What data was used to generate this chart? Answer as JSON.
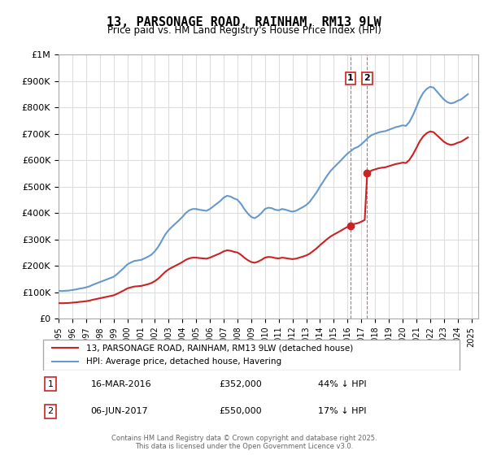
{
  "title": "13, PARSONAGE ROAD, RAINHAM, RM13 9LW",
  "subtitle": "Price paid vs. HM Land Registry's House Price Index (HPI)",
  "xlabel": "",
  "ylabel": "",
  "ylim": [
    0,
    1000000
  ],
  "yticks": [
    0,
    100000,
    200000,
    300000,
    400000,
    500000,
    600000,
    700000,
    800000,
    900000,
    1000000
  ],
  "ytick_labels": [
    "£0",
    "£100K",
    "£200K",
    "£300K",
    "£400K",
    "£500K",
    "£600K",
    "£700K",
    "£800K",
    "£900K",
    "£1M"
  ],
  "hpi_years": [
    1995.0,
    1995.25,
    1995.5,
    1995.75,
    1996.0,
    1996.25,
    1996.5,
    1996.75,
    1997.0,
    1997.25,
    1997.5,
    1997.75,
    1998.0,
    1998.25,
    1998.5,
    1998.75,
    1999.0,
    1999.25,
    1999.5,
    1999.75,
    2000.0,
    2000.25,
    2000.5,
    2000.75,
    2001.0,
    2001.25,
    2001.5,
    2001.75,
    2002.0,
    2002.25,
    2002.5,
    2002.75,
    2003.0,
    2003.25,
    2003.5,
    2003.75,
    2004.0,
    2004.25,
    2004.5,
    2004.75,
    2005.0,
    2005.25,
    2005.5,
    2005.75,
    2006.0,
    2006.25,
    2006.5,
    2006.75,
    2007.0,
    2007.25,
    2007.5,
    2007.75,
    2008.0,
    2008.25,
    2008.5,
    2008.75,
    2009.0,
    2009.25,
    2009.5,
    2009.75,
    2010.0,
    2010.25,
    2010.5,
    2010.75,
    2011.0,
    2011.25,
    2011.5,
    2011.75,
    2012.0,
    2012.25,
    2012.5,
    2012.75,
    2013.0,
    2013.25,
    2013.5,
    2013.75,
    2014.0,
    2014.25,
    2014.5,
    2014.75,
    2015.0,
    2015.25,
    2015.5,
    2015.75,
    2016.0,
    2016.25,
    2016.5,
    2016.75,
    2017.0,
    2017.25,
    2017.5,
    2017.75,
    2018.0,
    2018.25,
    2018.5,
    2018.75,
    2019.0,
    2019.25,
    2019.5,
    2019.75,
    2020.0,
    2020.25,
    2020.5,
    2020.75,
    2021.0,
    2021.25,
    2021.5,
    2021.75,
    2022.0,
    2022.25,
    2022.5,
    2022.75,
    2023.0,
    2023.25,
    2023.5,
    2023.75,
    2024.0,
    2024.25,
    2024.5,
    2024.75
  ],
  "hpi_values": [
    105000,
    104000,
    105000,
    106000,
    108000,
    110000,
    113000,
    115000,
    118000,
    122000,
    128000,
    133000,
    138000,
    143000,
    148000,
    153000,
    158000,
    168000,
    180000,
    192000,
    205000,
    212000,
    218000,
    220000,
    222000,
    228000,
    234000,
    242000,
    255000,
    272000,
    295000,
    318000,
    335000,
    348000,
    360000,
    372000,
    385000,
    400000,
    410000,
    415000,
    415000,
    412000,
    410000,
    408000,
    415000,
    425000,
    435000,
    445000,
    458000,
    465000,
    462000,
    455000,
    450000,
    435000,
    415000,
    398000,
    385000,
    380000,
    388000,
    400000,
    415000,
    420000,
    418000,
    412000,
    410000,
    415000,
    412000,
    408000,
    405000,
    408000,
    415000,
    422000,
    430000,
    442000,
    460000,
    478000,
    500000,
    520000,
    540000,
    558000,
    572000,
    585000,
    598000,
    612000,
    625000,
    635000,
    645000,
    650000,
    660000,
    672000,
    685000,
    695000,
    700000,
    705000,
    708000,
    710000,
    715000,
    720000,
    725000,
    728000,
    732000,
    730000,
    745000,
    770000,
    800000,
    832000,
    855000,
    870000,
    878000,
    875000,
    860000,
    845000,
    830000,
    820000,
    815000,
    818000,
    825000,
    830000,
    840000,
    850000
  ],
  "sold_years": [
    2016.21,
    2017.43
  ],
  "sold_prices": [
    352000,
    550000
  ],
  "sold_hpi_at_time": [
    615000,
    665000
  ],
  "transaction1": {
    "date": "16-MAR-2016",
    "price": "£352,000",
    "hpi_diff": "44% ↓ HPI"
  },
  "transaction2": {
    "date": "06-JUN-2017",
    "price": "£550,000",
    "hpi_diff": "17% ↓ HPI"
  },
  "line_color_hpi": "#6699cc",
  "line_color_price": "#cc2222",
  "vline_color": "#cc2222",
  "grid_color": "#dddddd",
  "background_color": "#ffffff",
  "legend_label_price": "13, PARSONAGE ROAD, RAINHAM, RM13 9LW (detached house)",
  "legend_label_hpi": "HPI: Average price, detached house, Havering",
  "footer_text": "Contains HM Land Registry data © Crown copyright and database right 2025.\nThis data is licensed under the Open Government Licence v3.0.",
  "xtick_years": [
    1995,
    1996,
    1997,
    1998,
    1999,
    2000,
    2001,
    2002,
    2003,
    2004,
    2005,
    2006,
    2007,
    2008,
    2009,
    2010,
    2011,
    2012,
    2013,
    2014,
    2015,
    2016,
    2017,
    2018,
    2019,
    2020,
    2021,
    2022,
    2023,
    2024,
    2025
  ]
}
